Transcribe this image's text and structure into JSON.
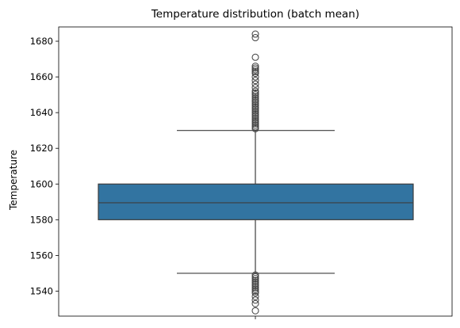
{
  "chart_data": {
    "type": "box",
    "title": "Temperature distribution (batch mean)",
    "xlabel": "",
    "ylabel": "Temperature",
    "ylim": [
      1526,
      1688
    ],
    "yticks": [
      1540,
      1560,
      1580,
      1600,
      1620,
      1640,
      1660,
      1680
    ],
    "grid": false,
    "colors": {
      "box_fill": "#3274a1",
      "line": "#3d3d3d"
    },
    "box": {
      "q1": 1580,
      "median": 1589.5,
      "q3": 1600,
      "whisker_low": 1550,
      "whisker_high": 1630
    },
    "outliers_high": [
      1631,
      1632,
      1633,
      1634,
      1635,
      1636,
      1637,
      1638,
      1639,
      1640,
      1641,
      1642,
      1643,
      1644,
      1645,
      1646,
      1647,
      1648,
      1649,
      1650,
      1651,
      1652,
      1654,
      1656,
      1658,
      1660,
      1662,
      1663,
      1664,
      1665,
      1666,
      1671,
      1682,
      1684
    ],
    "outliers_low": [
      1529,
      1533,
      1535,
      1537,
      1539,
      1540,
      1541,
      1542,
      1543,
      1544,
      1545,
      1546,
      1547,
      1548,
      1549
    ]
  }
}
